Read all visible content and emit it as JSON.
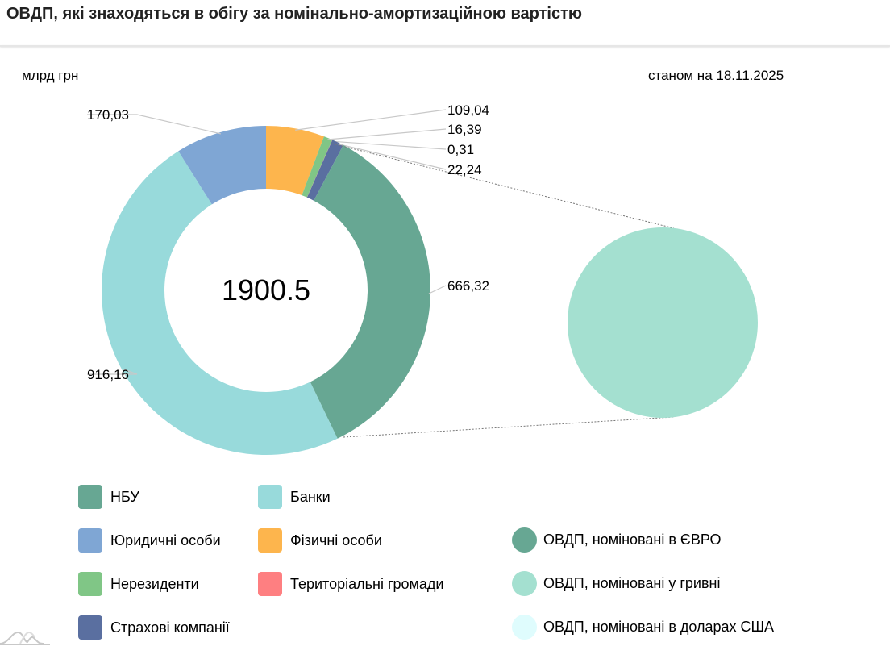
{
  "title": "ОВДП, які знаходяться в обігу за номінально-амортизаційною вартістю",
  "unit": "млрд грн",
  "date": "станом на 18.11.2025",
  "chart_data": {
    "type": "pie",
    "subtype": "donut with pie-of-pie",
    "total_label": "1900.5",
    "slices": [
      {
        "name": "Фізичні особи",
        "value": 109.04,
        "label": "109,04",
        "color": "#fdb54d"
      },
      {
        "name": "Нерезиденти",
        "value": 16.39,
        "label": "16,39",
        "color": "#80c686"
      },
      {
        "name": "Територіальні громади",
        "value": 0.31,
        "label": "0,31",
        "color": "#fe7f81"
      },
      {
        "name": "Страхові компанії",
        "value": 22.24,
        "label": "22,24",
        "color": "#5a6fa0"
      },
      {
        "name": "НБУ",
        "value": 666.32,
        "label": "666,32",
        "color": "#67a793"
      },
      {
        "name": "Банки",
        "value": 916.16,
        "label": "916,16",
        "color": "#98dadb"
      },
      {
        "name": "Юридичні особи",
        "value": 170.03,
        "label": "170,03",
        "color": "#7fa6d4"
      }
    ],
    "secondary": {
      "name": "ОВДП, номіновані у гривні",
      "color": "#a4e0d0"
    },
    "legend_series": [
      {
        "name": "ОВДП, номіновані в ЄВРО",
        "color": "#67a793"
      },
      {
        "name": "ОВДП, номіновані у гривні",
        "color": "#a4e0d0"
      },
      {
        "name": "ОВДП, номіновані в доларах США",
        "color": "#dffcfd"
      }
    ],
    "legend_placement": "bottom"
  }
}
